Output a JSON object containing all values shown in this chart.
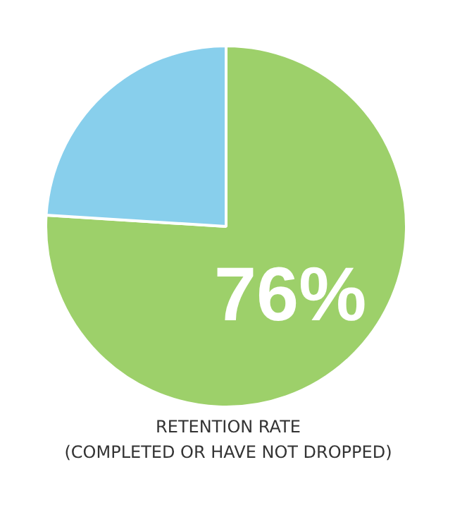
{
  "chart_data": {
    "type": "pie",
    "title": "RETENTION RATE\n(COMPLETED OR HAVE NOT DROPPED)",
    "categories": [
      null,
      null
    ],
    "values": [
      76,
      24
    ],
    "colors": [
      "#9dd06a",
      "#88cfec"
    ],
    "value_labels": [
      "76%",
      null
    ]
  }
}
